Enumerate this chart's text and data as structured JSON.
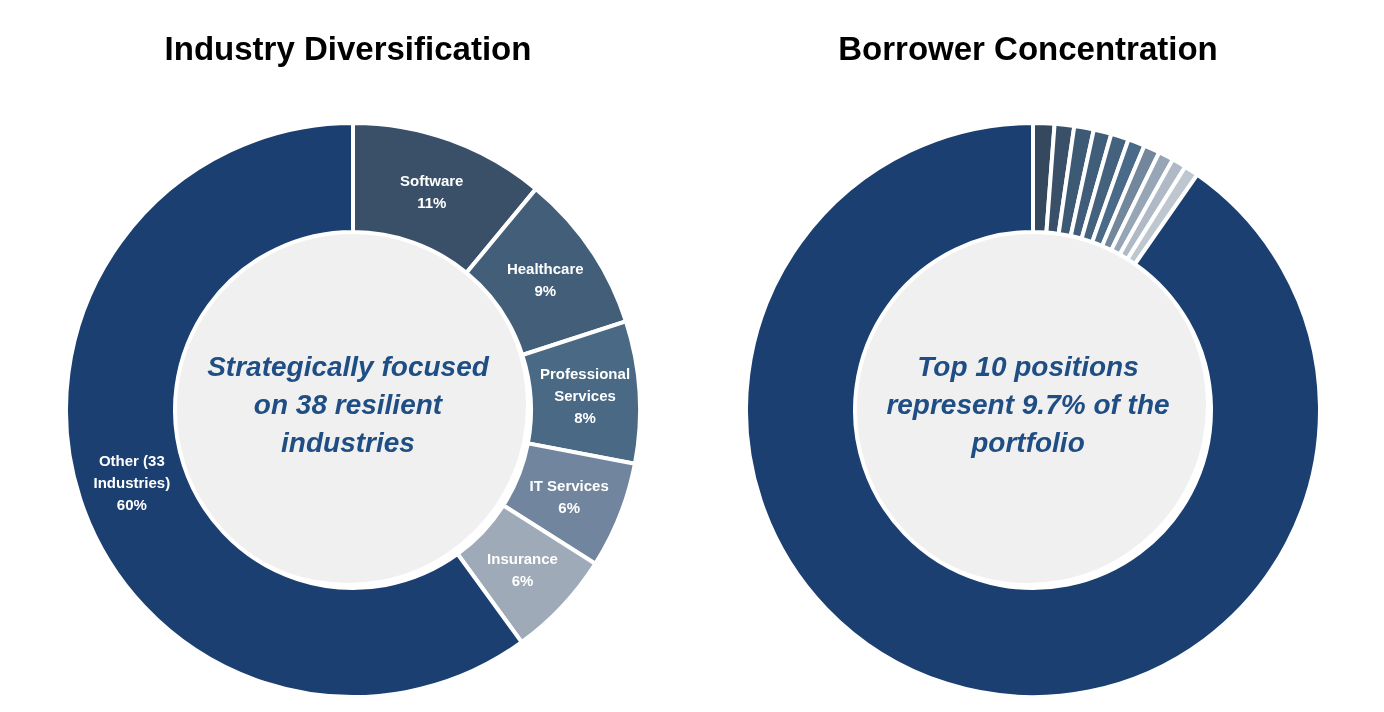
{
  "chart_data": [
    {
      "type": "donut",
      "title": "Industry Diversification",
      "categories": [
        "Software",
        "Healthcare",
        "Professional Services",
        "IT Services",
        "Insurance",
        "Other (33 Industries)"
      ],
      "values": [
        11,
        9,
        8,
        6,
        6,
        60
      ],
      "value_labels": [
        "11%",
        "9%",
        "8%",
        "6%",
        "6%",
        "60%"
      ],
      "colors": [
        "#3a5068",
        "#425e78",
        "#4a6985",
        "#71869e",
        "#9faab9",
        "#1b3f70"
      ],
      "annotations": [
        "Strategically focused on 38 resilient industries"
      ],
      "legend": false
    },
    {
      "type": "donut",
      "title": "Borrower Concentration",
      "categories": [
        null,
        null,
        null,
        null,
        null,
        null,
        null,
        null,
        null,
        null,
        null
      ],
      "values": [
        1.2,
        1.1,
        1.1,
        1.0,
        1.0,
        0.95,
        0.9,
        0.85,
        0.8,
        0.8,
        90.3
      ],
      "colors": [
        "#34495e",
        "#3a5068",
        "#3d5a74",
        "#405d79",
        "#44617e",
        "#4a6a8a",
        "#72869c",
        "#97a6b6",
        "#afbac6",
        "#bec7d0",
        "#1b3f70"
      ],
      "annotations": [
        "Top 10 positions represent 9.7% of the portfolio"
      ],
      "legend": false
    }
  ]
}
